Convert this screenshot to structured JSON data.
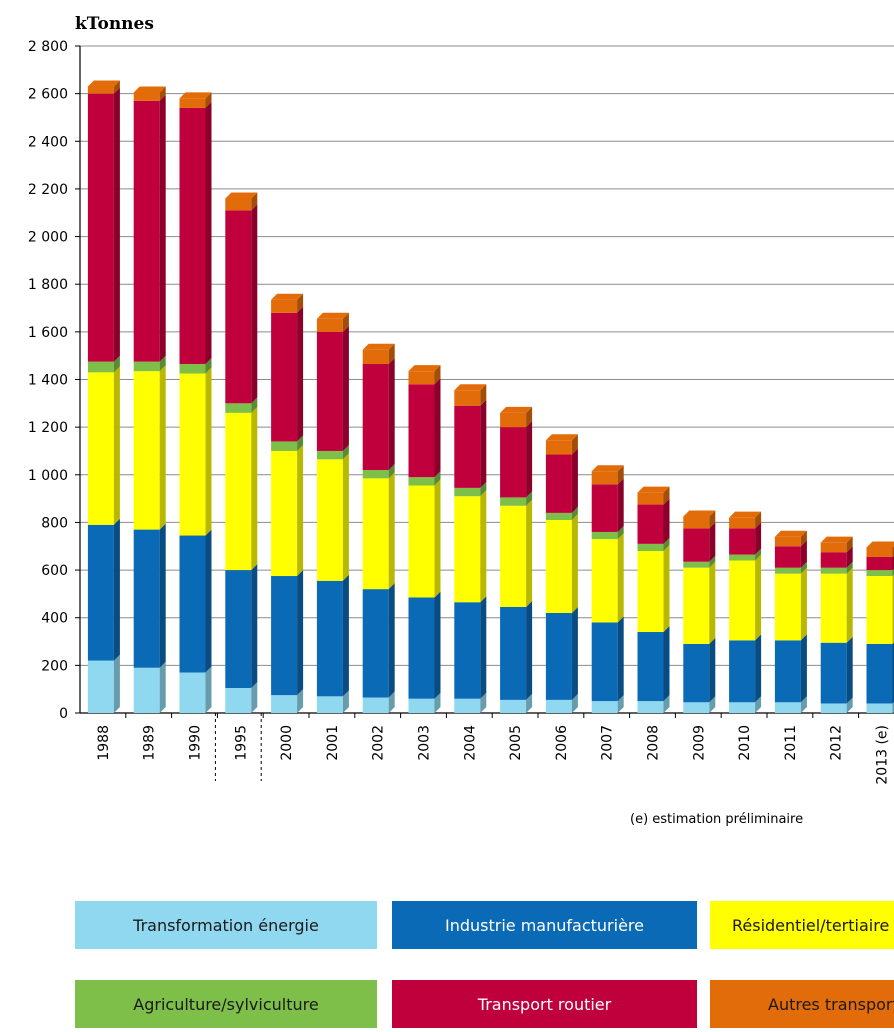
{
  "chart_data": {
    "type": "bar",
    "stacked": true,
    "ylabel": "kTonnes",
    "ylim": [
      0,
      2800
    ],
    "yticks": [
      0,
      200,
      400,
      600,
      800,
      1000,
      1200,
      1400,
      1600,
      1800,
      2000,
      2200,
      2400,
      2600,
      2800
    ],
    "ytick_labels": [
      "0",
      "200",
      "400",
      "600",
      "800",
      "1 000",
      "1 200",
      "1 400",
      "1 600",
      "1 800",
      "2 000",
      "2 200",
      "2 400",
      "2 600",
      "2 800"
    ],
    "categories": [
      "1988",
      "1989",
      "1990",
      "1995",
      "2000",
      "2001",
      "2002",
      "2003",
      "2004",
      "2005",
      "2006",
      "2007",
      "2008",
      "2009",
      "2010",
      "2011",
      "2012",
      "2013 (e)"
    ],
    "grid": true,
    "legend_position": "bottom",
    "footnote": "(e) estimation préliminaire",
    "series": [
      {
        "name": "Transformation énergie",
        "color": "#8fd8f0",
        "values": [
          220,
          190,
          170,
          105,
          75,
          70,
          65,
          60,
          60,
          55,
          55,
          50,
          50,
          45,
          45,
          45,
          40,
          40
        ]
      },
      {
        "name": "Industrie manufacturière",
        "color": "#0b6ab5",
        "values": [
          570,
          580,
          575,
          495,
          500,
          485,
          455,
          425,
          405,
          390,
          365,
          330,
          290,
          245,
          260,
          260,
          255,
          250
        ]
      },
      {
        "name": "Résidentiel/tertiaire",
        "color": "#ffff00",
        "values": [
          640,
          665,
          680,
          660,
          525,
          510,
          465,
          470,
          445,
          425,
          390,
          350,
          340,
          320,
          335,
          280,
          290,
          285
        ]
      },
      {
        "name": "Agriculture/sylviculture",
        "color": "#7ebf4a",
        "values": [
          45,
          40,
          40,
          40,
          40,
          35,
          35,
          35,
          35,
          35,
          30,
          30,
          30,
          25,
          25,
          25,
          25,
          25
        ]
      },
      {
        "name": "Transport routier",
        "color": "#c0003c",
        "values": [
          1125,
          1095,
          1075,
          810,
          540,
          500,
          445,
          390,
          345,
          295,
          245,
          200,
          165,
          140,
          110,
          90,
          65,
          55
        ]
      },
      {
        "name": "Autres transports",
        "color": "#e36c0a",
        "values": [
          30,
          35,
          40,
          50,
          55,
          55,
          60,
          55,
          65,
          60,
          60,
          55,
          50,
          50,
          45,
          40,
          40,
          40
        ]
      }
    ]
  },
  "legend": {
    "items": [
      {
        "label": "Transformation énergie",
        "bg": "#8fd8f0",
        "fg": "#1a1a1a"
      },
      {
        "label": "Industrie manufacturière",
        "bg": "#0b6ab5",
        "fg": "#ffffff"
      },
      {
        "label": "Résidentiel/tertiaire",
        "bg": "#ffff00",
        "fg": "#1a1a1a"
      },
      {
        "label": "Agriculture/sylviculture",
        "bg": "#7ebf4a",
        "fg": "#1a1a1a"
      },
      {
        "label": "Transport routier",
        "bg": "#c0003c",
        "fg": "#ffffff"
      },
      {
        "label": "Autres transports",
        "bg": "#e36c0a",
        "fg": "#1a1a1a"
      }
    ]
  }
}
